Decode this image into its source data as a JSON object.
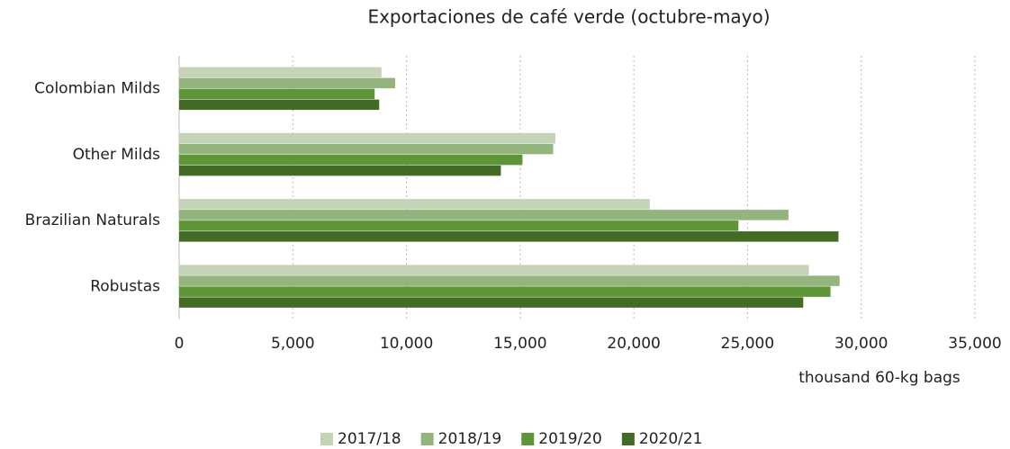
{
  "chart_data": {
    "type": "bar",
    "orientation": "horizontal",
    "title": "Exportaciones de café verde (octubre-mayo)",
    "xlabel": "thousand 60-kg bags",
    "categories": [
      "Colombian Milds",
      "Other Milds",
      "Brazilian Naturals",
      "Robustas"
    ],
    "series": [
      {
        "name": "2017/18",
        "color": "#c5d4b6",
        "values": [
          8900,
          16550,
          20700,
          27700
        ]
      },
      {
        "name": "2018/19",
        "color": "#93b47c",
        "values": [
          9500,
          16450,
          26800,
          29050
        ]
      },
      {
        "name": "2019/20",
        "color": "#5e9536",
        "values": [
          8600,
          15100,
          24600,
          28650
        ]
      },
      {
        "name": "2020/21",
        "color": "#436b25",
        "values": [
          8800,
          14150,
          29000,
          27450
        ]
      }
    ],
    "xlim": [
      0,
      35000
    ],
    "xticks": [
      0,
      {
        "value": 5000,
        "label": "5,000"
      },
      {
        "value": 10000,
        "label": "10,000"
      },
      {
        "value": 15000,
        "label": "15,000"
      },
      {
        "value": 20000,
        "label": "20,000"
      },
      {
        "value": 25000,
        "label": "25,000"
      },
      {
        "value": 30000,
        "label": "30,000"
      },
      {
        "value": 35000,
        "label": "35,000"
      }
    ],
    "grid": true,
    "legend": "bottom"
  }
}
